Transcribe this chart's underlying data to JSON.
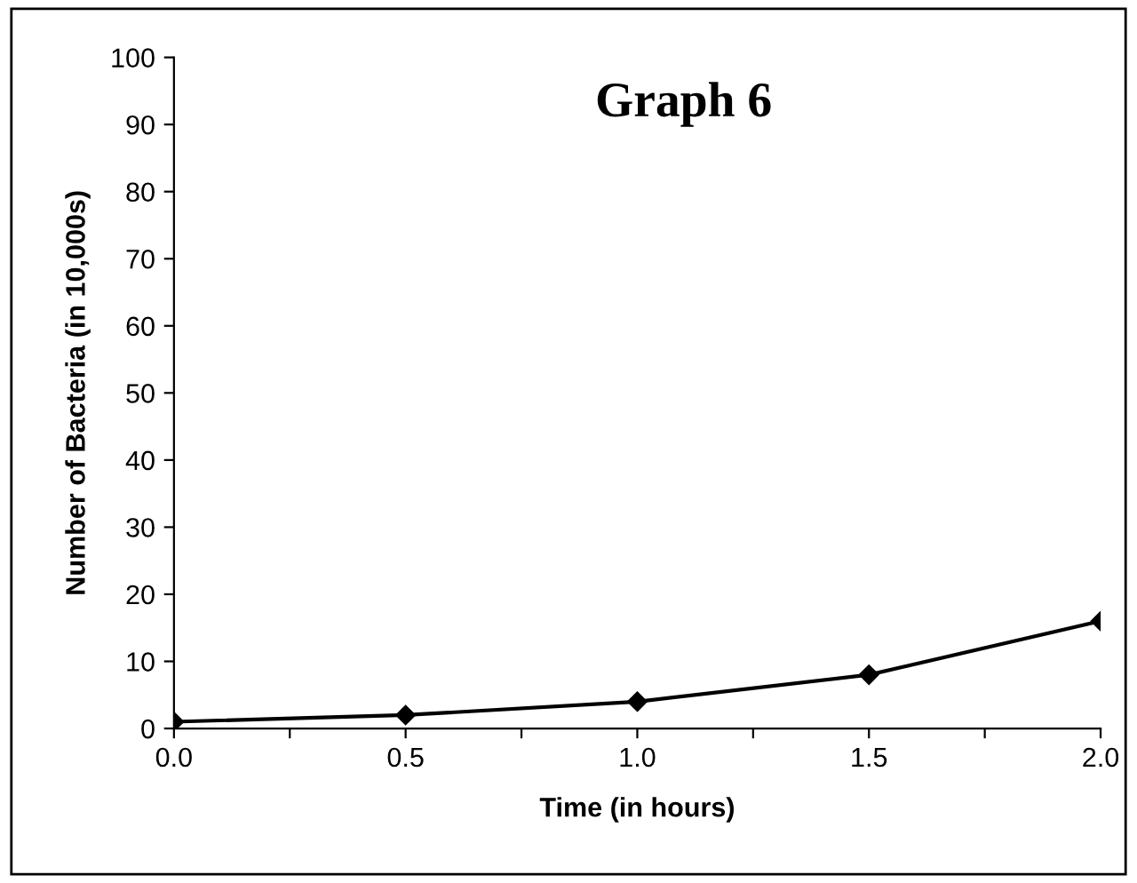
{
  "chart_data": {
    "type": "line",
    "title": "Graph 6",
    "xlabel": "Time (in hours)",
    "ylabel": "Number of Bacteria (in 10,000s)",
    "x": [
      0,
      0.5,
      1,
      1.5,
      2
    ],
    "series": [
      {
        "color": "#000000",
        "values": [
          1,
          2,
          4,
          8,
          16
        ]
      }
    ],
    "xlim": [
      0,
      2
    ],
    "ylim": [
      0,
      100
    ],
    "xticks": [
      {
        "value": 0,
        "label": "0.0"
      },
      {
        "value": 0.25,
        "label": null
      },
      {
        "value": 0.5,
        "label": "0.5"
      },
      {
        "value": 0.75,
        "label": null
      },
      {
        "value": 1,
        "label": "1.0"
      },
      {
        "value": 1.25,
        "label": null
      },
      {
        "value": 1.5,
        "label": "1.5"
      },
      {
        "value": 1.75,
        "label": null
      },
      {
        "value": 2,
        "label": "2.0"
      }
    ],
    "yticks": [
      0,
      10,
      20,
      30,
      40,
      50,
      60,
      70,
      80,
      90,
      100
    ],
    "grid": false,
    "legend": false,
    "marker": "diamond",
    "line_style": "solid"
  }
}
